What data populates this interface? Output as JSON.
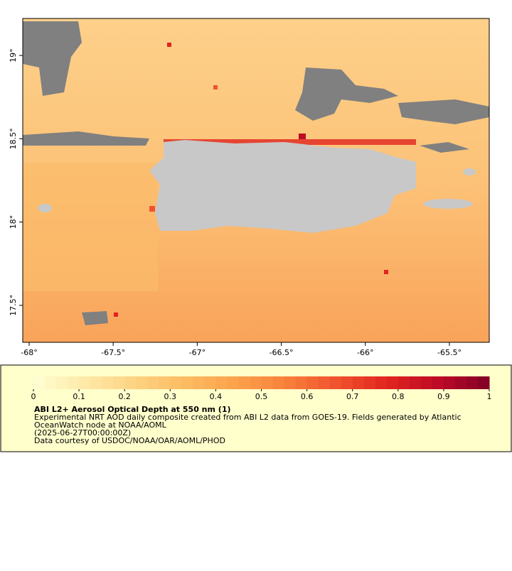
{
  "map": {
    "xlim": [
      -68.038,
      -65.263
    ],
    "ylim": [
      17.278,
      19.222
    ],
    "xticks": [
      {
        "value": -68,
        "label": "-68°"
      },
      {
        "value": -67.5,
        "label": "-67.5°"
      },
      {
        "value": -67,
        "label": "-67°"
      },
      {
        "value": -66.5,
        "label": "-66.5°"
      },
      {
        "value": -66,
        "label": "-66°"
      },
      {
        "value": -65.5,
        "label": "-65.5°"
      }
    ],
    "yticks": [
      {
        "value": 17.5,
        "label": "17.5°"
      },
      {
        "value": 18,
        "label": "18°"
      },
      {
        "value": 18.5,
        "label": "18.5°"
      },
      {
        "value": 19,
        "label": "19°"
      }
    ]
  },
  "colorbar": {
    "range": [
      0,
      1
    ],
    "ticks": [
      0,
      0.1,
      0.2,
      0.3,
      0.4,
      0.5,
      0.6,
      0.7,
      0.8,
      0.9,
      1
    ],
    "colors": [
      "#ffffd4",
      "#fee9a8",
      "#fdd383",
      "#fdbb62",
      "#fca24c",
      "#f9803c",
      "#f0522d",
      "#e0241f",
      "#bd0a26",
      "#800026"
    ]
  },
  "legend": {
    "title": "ABI L2+ Aerosol Optical Depth at 550 nm (1)",
    "lines": [
      "Experimental NRT AOD daily composite created from ABI L2 data from GOES-19. Fields generated by Atlantic",
      "OceanWatch node at NOAA/AOML",
      "(2025-06-27T00:00:00Z)",
      "Data courtesy of USDOC/NOAA/OAR/AOML/PHOD"
    ]
  }
}
